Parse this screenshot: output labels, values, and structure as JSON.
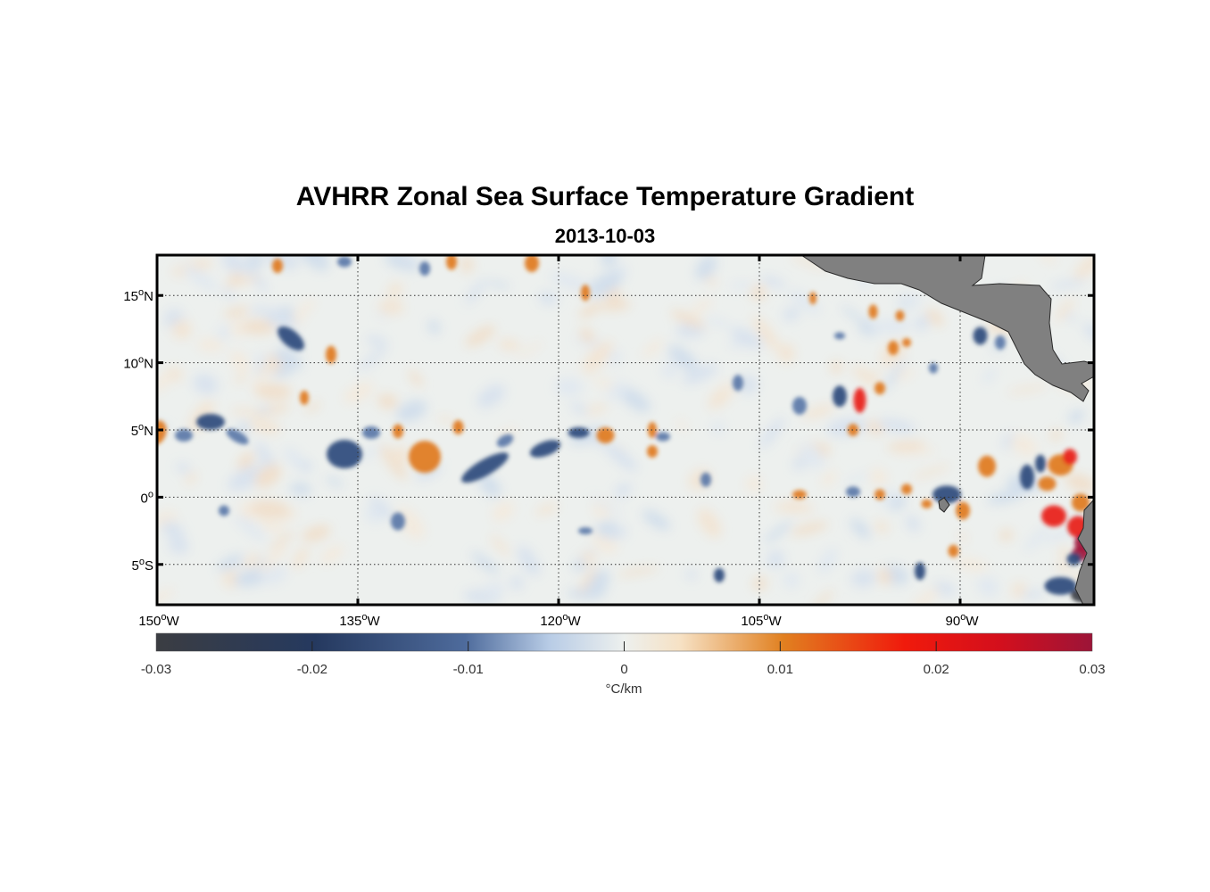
{
  "title": "AVHRR Zonal Sea Surface Temperature Gradient",
  "date": "2013-10-03",
  "map": {
    "lon_range": [
      -150,
      -80
    ],
    "lat_range": [
      -8,
      18
    ],
    "lat_ticks": [
      {
        "value": 15,
        "deg": "15",
        "hemi": "N"
      },
      {
        "value": 10,
        "deg": "10",
        "hemi": "N"
      },
      {
        "value": 5,
        "deg": "5",
        "hemi": "N"
      },
      {
        "value": 0,
        "deg": "0",
        "hemi": ""
      },
      {
        "value": -5,
        "deg": "5",
        "hemi": "S"
      }
    ],
    "lon_ticks": [
      {
        "value": -150,
        "deg": "150",
        "hemi": "W"
      },
      {
        "value": -135,
        "deg": "135",
        "hemi": "W"
      },
      {
        "value": -120,
        "deg": "120",
        "hemi": "W"
      },
      {
        "value": -105,
        "deg": "105",
        "hemi": "W"
      },
      {
        "value": -90,
        "deg": "90",
        "hemi": "W"
      }
    ],
    "land_color": "#808080",
    "colors": {
      "neg3": "#3a3d45",
      "neg2": "#2c4a7c",
      "neg1": "#5a78a8",
      "zero": "#ecefee",
      "pos1": "#e07a1c",
      "pos2": "#e8201a",
      "pos3": "#a0143c"
    }
  },
  "colorbar": {
    "ticks": [
      "-0.03",
      "-0.02",
      "-0.01",
      "0",
      "0.01",
      "0.02",
      "0.03"
    ],
    "units": "°C/km"
  }
}
